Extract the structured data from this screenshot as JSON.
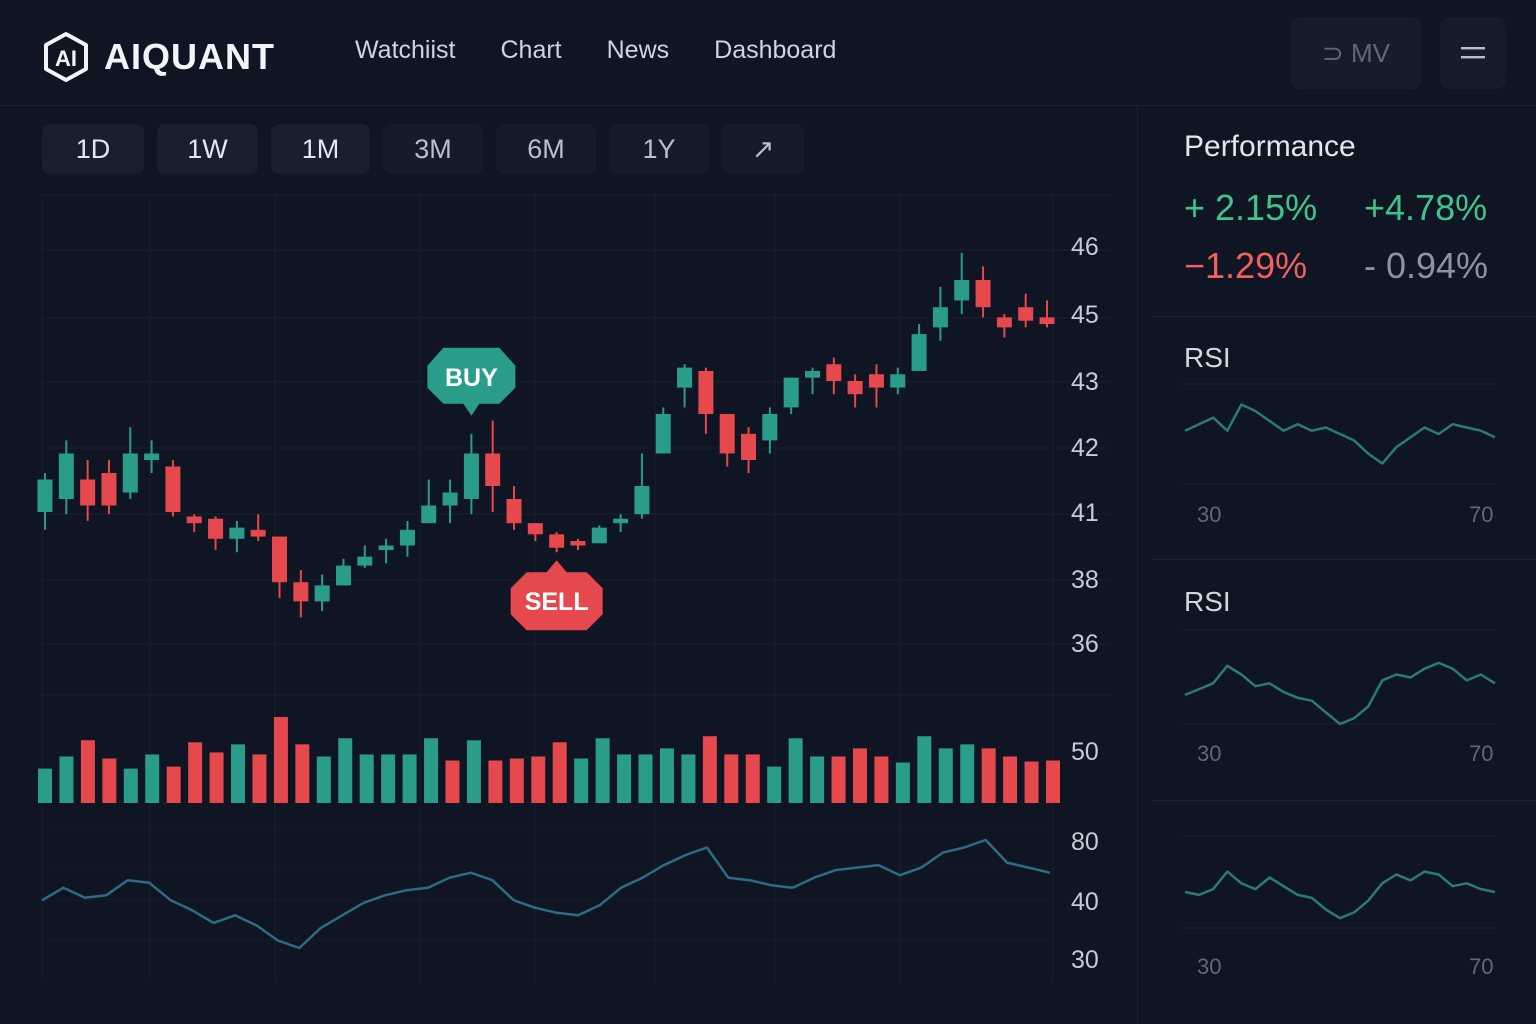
{
  "app": {
    "brand": "AIQUANT",
    "nav": [
      "Watchiist",
      "Chart",
      "News",
      "Dashboard"
    ],
    "header_buttons": {
      "mv_label": "⊃ MV",
      "menu_icon": "menu-icon"
    }
  },
  "timeframes": [
    "1D",
    "1W",
    "1M",
    "3M",
    "6M",
    "1Y"
  ],
  "timeframe_expand_icon": "↗",
  "chart_data": [
    {
      "type": "candlestick",
      "title": "",
      "y_tick_labels": [
        "46",
        "45",
        "43",
        "42",
        "41",
        "38",
        "36"
      ],
      "candles": [
        {
          "o": 41.0,
          "h": 41.6,
          "l": 40.2,
          "c": 41.5,
          "dir": "up"
        },
        {
          "o": 41.2,
          "h": 42.1,
          "l": 40.9,
          "c": 41.9,
          "dir": "up"
        },
        {
          "o": 41.5,
          "h": 41.8,
          "l": 40.6,
          "c": 41.1,
          "dir": "down"
        },
        {
          "o": 41.6,
          "h": 41.8,
          "l": 40.9,
          "c": 41.1,
          "dir": "down"
        },
        {
          "o": 41.3,
          "h": 42.3,
          "l": 41.2,
          "c": 41.9,
          "dir": "up"
        },
        {
          "o": 41.8,
          "h": 42.1,
          "l": 41.6,
          "c": 41.9,
          "dir": "up"
        },
        {
          "o": 41.7,
          "h": 41.8,
          "l": 40.8,
          "c": 41.0,
          "dir": "down"
        },
        {
          "o": 40.8,
          "h": 40.9,
          "l": 40.1,
          "c": 40.5,
          "dir": "down"
        },
        {
          "o": 40.7,
          "h": 40.8,
          "l": 39.3,
          "c": 39.8,
          "dir": "down"
        },
        {
          "o": 39.8,
          "h": 40.6,
          "l": 39.2,
          "c": 40.3,
          "dir": "up"
        },
        {
          "o": 40.2,
          "h": 40.9,
          "l": 39.7,
          "c": 39.9,
          "dir": "down"
        },
        {
          "o": 39.9,
          "h": 39.9,
          "l": 37.4,
          "c": 37.9,
          "dir": "down"
        },
        {
          "o": 37.9,
          "h": 38.4,
          "l": 36.8,
          "c": 37.3,
          "dir": "down"
        },
        {
          "o": 37.3,
          "h": 38.2,
          "l": 37.0,
          "c": 37.8,
          "dir": "up"
        },
        {
          "o": 37.8,
          "h": 38.9,
          "l": 37.8,
          "c": 38.6,
          "dir": "up"
        },
        {
          "o": 38.6,
          "h": 39.5,
          "l": 38.5,
          "c": 39.0,
          "dir": "up"
        },
        {
          "o": 39.3,
          "h": 39.8,
          "l": 38.7,
          "c": 39.5,
          "dir": "up"
        },
        {
          "o": 39.5,
          "h": 40.6,
          "l": 39.0,
          "c": 40.2,
          "dir": "up"
        },
        {
          "o": 40.5,
          "h": 41.5,
          "l": 40.5,
          "c": 41.1,
          "dir": "up"
        },
        {
          "o": 41.1,
          "h": 41.5,
          "l": 40.5,
          "c": 41.3,
          "dir": "up"
        },
        {
          "o": 41.2,
          "h": 42.2,
          "l": 40.9,
          "c": 41.9,
          "dir": "up"
        },
        {
          "o": 41.9,
          "h": 42.4,
          "l": 41.0,
          "c": 41.4,
          "dir": "down"
        },
        {
          "o": 41.2,
          "h": 41.4,
          "l": 40.2,
          "c": 40.5,
          "dir": "down"
        },
        {
          "o": 40.5,
          "h": 40.5,
          "l": 39.7,
          "c": 40.0,
          "dir": "down"
        },
        {
          "o": 40.0,
          "h": 40.1,
          "l": 39.2,
          "c": 39.4,
          "dir": "down"
        },
        {
          "o": 39.7,
          "h": 39.8,
          "l": 39.3,
          "c": 39.5,
          "dir": "down"
        },
        {
          "o": 39.6,
          "h": 40.4,
          "l": 39.6,
          "c": 40.3,
          "dir": "up"
        },
        {
          "o": 40.5,
          "h": 40.9,
          "l": 40.1,
          "c": 40.7,
          "dir": "up"
        },
        {
          "o": 40.9,
          "h": 41.9,
          "l": 40.7,
          "c": 41.4,
          "dir": "up"
        },
        {
          "o": 41.9,
          "h": 42.6,
          "l": 41.9,
          "c": 42.5,
          "dir": "up"
        },
        {
          "o": 42.9,
          "h": 43.5,
          "l": 42.6,
          "c": 43.4,
          "dir": "up"
        },
        {
          "o": 43.3,
          "h": 43.4,
          "l": 42.2,
          "c": 42.5,
          "dir": "down"
        },
        {
          "o": 42.5,
          "h": 42.5,
          "l": 41.7,
          "c": 41.9,
          "dir": "down"
        },
        {
          "o": 42.2,
          "h": 42.3,
          "l": 41.6,
          "c": 41.8,
          "dir": "down"
        },
        {
          "o": 42.1,
          "h": 42.6,
          "l": 41.9,
          "c": 42.5,
          "dir": "up"
        },
        {
          "o": 42.6,
          "h": 43.1,
          "l": 42.5,
          "c": 43.1,
          "dir": "up"
        },
        {
          "o": 43.1,
          "h": 43.4,
          "l": 42.8,
          "c": 43.3,
          "dir": "up"
        },
        {
          "o": 43.5,
          "h": 43.7,
          "l": 42.8,
          "c": 43.0,
          "dir": "down"
        },
        {
          "o": 43.0,
          "h": 43.2,
          "l": 42.6,
          "c": 42.8,
          "dir": "down"
        },
        {
          "o": 43.2,
          "h": 43.5,
          "l": 42.6,
          "c": 42.9,
          "dir": "down"
        },
        {
          "o": 42.9,
          "h": 43.4,
          "l": 42.8,
          "c": 43.2,
          "dir": "up"
        },
        {
          "o": 43.3,
          "h": 44.7,
          "l": 43.3,
          "c": 44.4,
          "dir": "up"
        },
        {
          "o": 44.6,
          "h": 45.4,
          "l": 44.2,
          "c": 45.1,
          "dir": "up"
        },
        {
          "o": 45.2,
          "h": 45.9,
          "l": 45.0,
          "c": 45.5,
          "dir": "up"
        },
        {
          "o": 45.5,
          "h": 45.7,
          "l": 44.9,
          "c": 45.1,
          "dir": "down"
        },
        {
          "o": 44.9,
          "h": 45.0,
          "l": 44.3,
          "c": 44.6,
          "dir": "down"
        },
        {
          "o": 45.1,
          "h": 45.3,
          "l": 44.6,
          "c": 44.8,
          "dir": "down"
        },
        {
          "o": 44.9,
          "h": 45.2,
          "l": 44.6,
          "c": 44.7,
          "dir": "down"
        }
      ],
      "annotations": [
        {
          "label": "BUY",
          "candle_index": 20,
          "kind": "buy"
        },
        {
          "label": "SELL",
          "candle_index": 24,
          "kind": "sell"
        }
      ]
    },
    {
      "type": "bar",
      "title": "",
      "y_tick_labels": [
        "50"
      ],
      "values": [
        34,
        46,
        62,
        44,
        34,
        48,
        36,
        60,
        50,
        58,
        48,
        85,
        58,
        46,
        64,
        48,
        48,
        48,
        64,
        42,
        62,
        42,
        44,
        46,
        60,
        44,
        64,
        48,
        48,
        54,
        48,
        66,
        48,
        48,
        36,
        64,
        46,
        46,
        54,
        46,
        40,
        66,
        54,
        58,
        54,
        46,
        41,
        42
      ],
      "colors": [
        "up",
        "up",
        "down",
        "down",
        "up",
        "up",
        "down",
        "down",
        "down",
        "up",
        "down",
        "down",
        "down",
        "up",
        "up",
        "up",
        "up",
        "up",
        "up",
        "down",
        "up",
        "down",
        "down",
        "down",
        "down",
        "up",
        "up",
        "up",
        "up",
        "up",
        "up",
        "down",
        "down",
        "down",
        "up",
        "up",
        "up",
        "down",
        "down",
        "down",
        "up",
        "up",
        "up",
        "up",
        "down",
        "down",
        "down",
        "down"
      ]
    },
    {
      "type": "line",
      "title": "",
      "y_tick_labels": [
        "80",
        "40",
        "30"
      ],
      "values": [
        47,
        52,
        48,
        49,
        55,
        54,
        47,
        43,
        38,
        41,
        37,
        31,
        28,
        36,
        41,
        46,
        49,
        51,
        52,
        56,
        58,
        55,
        47,
        44,
        42,
        41,
        45,
        52,
        56,
        61,
        65,
        68,
        56,
        55,
        53,
        52,
        56,
        59,
        60,
        61,
        57,
        60,
        66,
        68,
        71,
        62,
        60,
        58
      ]
    }
  ],
  "performance": {
    "title": "Performance",
    "values": [
      {
        "text": "+ 2.15%",
        "tone": "green"
      },
      {
        "text": "+4.78%",
        "tone": "green"
      },
      {
        "text": "−1.29%",
        "tone": "red"
      },
      {
        "text": "- 0.94%",
        "tone": "gray"
      }
    ]
  },
  "rsi_panels": [
    {
      "title": "RSI",
      "min_label": "30",
      "max_label": "70",
      "values": [
        50,
        52,
        54,
        50,
        58,
        56,
        53,
        50,
        52,
        50,
        51,
        49,
        47,
        43,
        40,
        45,
        48,
        51,
        49,
        52,
        51,
        50,
        48
      ]
    },
    {
      "title": "RSI",
      "min_label": "30",
      "max_label": "70",
      "values": [
        48,
        50,
        52,
        58,
        55,
        51,
        52,
        49,
        47,
        46,
        42,
        38,
        40,
        44,
        53,
        55,
        54,
        57,
        59,
        57,
        53,
        55,
        52
      ]
    },
    {
      "title": "",
      "min_label": "30",
      "max_label": "70",
      "values": [
        49,
        48,
        50,
        56,
        52,
        50,
        54,
        51,
        48,
        47,
        43,
        40,
        42,
        46,
        52,
        55,
        53,
        56,
        55,
        51,
        52,
        50,
        49
      ]
    }
  ],
  "colors": {
    "up": "#2a9d8a",
    "down": "#e5484d",
    "line": "#2f6b86",
    "rsi_line": "#2c7a78",
    "green_text": "#3fc48d",
    "red_text": "#f0605f",
    "gray_text": "#8a93a1",
    "background": "#0f1522"
  }
}
